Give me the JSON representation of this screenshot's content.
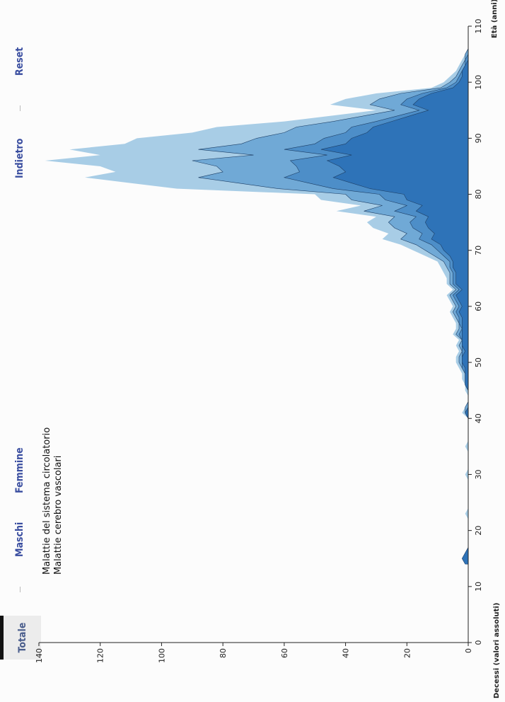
{
  "controls": {
    "tab_total": "Totale",
    "tab_males": "Maschi",
    "tab_females": "Femmine",
    "back": "Indietro",
    "reset": "Reset"
  },
  "legend": {
    "items": [
      "Malattie del sistema circolatorio",
      "Malattie cerebro vascolari"
    ]
  },
  "chart_data": {
    "type": "area",
    "xlabel": "Età (anni)",
    "ylabel": "Decessi (valori assoluti)",
    "xlim": [
      0,
      110
    ],
    "ylim": [
      0,
      140
    ],
    "x_ticks": [
      0,
      10,
      20,
      30,
      40,
      50,
      60,
      70,
      80,
      90,
      100,
      110
    ],
    "y_ticks": [
      0,
      20,
      40,
      60,
      80,
      100,
      120,
      140
    ],
    "x": [
      14,
      15,
      16,
      17,
      18,
      19,
      20,
      21,
      22,
      23,
      24,
      25,
      26,
      27,
      28,
      29,
      30,
      31,
      32,
      33,
      34,
      35,
      36,
      37,
      38,
      39,
      40,
      41,
      42,
      43,
      44,
      45,
      46,
      47,
      48,
      49,
      50,
      51,
      52,
      53,
      54,
      55,
      56,
      57,
      58,
      59,
      60,
      61,
      62,
      63,
      64,
      65,
      66,
      67,
      68,
      69,
      70,
      71,
      72,
      73,
      74,
      75,
      76,
      77,
      78,
      79,
      80,
      81,
      82,
      83,
      84,
      85,
      86,
      87,
      88,
      89,
      90,
      91,
      92,
      93,
      94,
      95,
      96,
      97,
      98,
      99,
      100,
      101,
      102,
      103,
      104,
      105,
      106
    ],
    "colors": [
      "#a8cde6",
      "#70a9d6",
      "#4d8ec8",
      "#2e73b8"
    ],
    "layers": [
      {
        "values": [
          0,
          0,
          0,
          0,
          0,
          0,
          0,
          0,
          0,
          1,
          0,
          0,
          0,
          0,
          0,
          0,
          1,
          0,
          0,
          0,
          0,
          1,
          0,
          0,
          0,
          0,
          0,
          2,
          1,
          0,
          0,
          1,
          1,
          2,
          2,
          3,
          4,
          4,
          3,
          4,
          3,
          5,
          4,
          4,
          5,
          6,
          5,
          6,
          7,
          5,
          7,
          7,
          8,
          9,
          10,
          14,
          18,
          22,
          28,
          26,
          31,
          33,
          30,
          43,
          35,
          48,
          50,
          95,
          110,
          125,
          115,
          120,
          138,
          120,
          130,
          112,
          108,
          90,
          82,
          60,
          45,
          30,
          45,
          40,
          30,
          12,
          8,
          6,
          4,
          3,
          2,
          1,
          0
        ]
      },
      {
        "values": [
          0,
          0,
          0,
          0,
          0,
          0,
          0,
          0,
          0,
          0,
          0,
          0,
          0,
          0,
          0,
          0,
          0,
          0,
          0,
          0,
          0,
          0,
          0,
          0,
          0,
          0,
          0,
          1,
          1,
          0,
          0,
          0,
          1,
          1,
          1,
          2,
          3,
          3,
          2,
          3,
          2,
          4,
          3,
          3,
          4,
          5,
          4,
          5,
          6,
          4,
          6,
          6,
          6,
          7,
          8,
          11,
          14,
          17,
          22,
          20,
          24,
          26,
          24,
          34,
          28,
          38,
          40,
          62,
          75,
          88,
          80,
          82,
          90,
          70,
          88,
          74,
          69,
          60,
          56,
          44,
          34,
          24,
          32,
          29,
          22,
          9,
          6,
          4,
          3,
          2,
          1,
          1,
          0
        ]
      },
      {
        "values": [
          0,
          0,
          0,
          0,
          0,
          0,
          0,
          0,
          0,
          0,
          0,
          0,
          0,
          0,
          0,
          0,
          0,
          0,
          0,
          0,
          0,
          0,
          0,
          0,
          0,
          0,
          0,
          1,
          0,
          0,
          0,
          0,
          1,
          1,
          1,
          2,
          2,
          2,
          2,
          2,
          2,
          3,
          2,
          3,
          3,
          4,
          3,
          4,
          5,
          3,
          5,
          5,
          5,
          6,
          6,
          8,
          10,
          12,
          16,
          15,
          18,
          19,
          17,
          24,
          20,
          27,
          29,
          44,
          52,
          60,
          55,
          56,
          58,
          46,
          60,
          50,
          47,
          40,
          38,
          30,
          23,
          16,
          22,
          20,
          15,
          7,
          4,
          3,
          2,
          1,
          1,
          0,
          0
        ]
      },
      {
        "values": [
          1,
          2,
          1,
          0,
          0,
          0,
          0,
          0,
          0,
          0,
          0,
          0,
          0,
          0,
          0,
          0,
          0,
          0,
          0,
          0,
          0,
          0,
          0,
          0,
          0,
          0,
          0,
          1,
          0,
          0,
          0,
          0,
          1,
          1,
          1,
          1,
          2,
          2,
          1,
          2,
          2,
          2,
          2,
          2,
          2,
          3,
          2,
          3,
          4,
          2,
          4,
          4,
          4,
          5,
          5,
          6,
          8,
          9,
          12,
          11,
          13,
          14,
          13,
          17,
          15,
          20,
          21,
          32,
          38,
          44,
          40,
          42,
          46,
          38,
          48,
          40,
          38,
          33,
          31,
          25,
          19,
          13,
          18,
          16,
          12,
          5,
          3,
          2,
          2,
          1,
          0,
          0,
          0
        ]
      }
    ]
  }
}
